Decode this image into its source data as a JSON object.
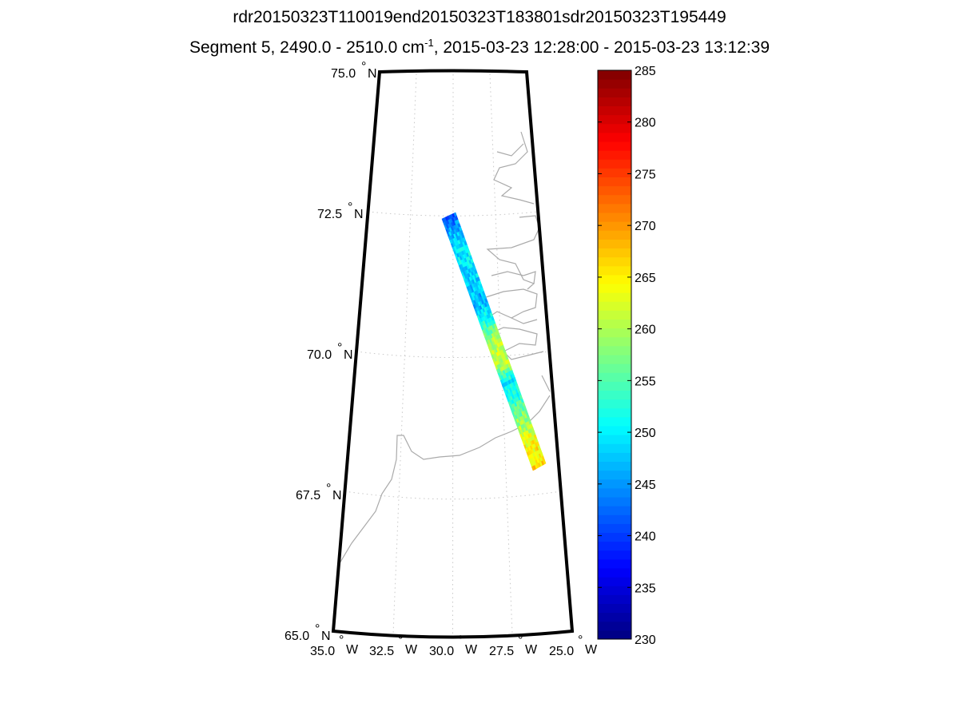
{
  "title": {
    "line1": "rdr20150323T110019end20150323T183801sdr20150323T195449",
    "line2_prefix": "Segment 5, 2490.0 - 2510.0 cm",
    "line2_sup": "-1",
    "line2_suffix": ", 2015-03-23 12:28:00 - 2015-03-23 13:12:39"
  },
  "chart_data": {
    "type": "heatmap",
    "projection": "map",
    "lat_range": [
      65.0,
      75.0
    ],
    "lon_range": [
      -35.0,
      -25.0
    ],
    "lat_ticks": [
      {
        "value": 75.0,
        "label": "75.0",
        "hemi": "N"
      },
      {
        "value": 72.5,
        "label": "72.5",
        "hemi": "N"
      },
      {
        "value": 70.0,
        "label": "70.0",
        "hemi": "N"
      },
      {
        "value": 67.5,
        "label": "67.5",
        "hemi": "N"
      },
      {
        "value": 65.0,
        "label": "65.0",
        "hemi": "N"
      }
    ],
    "lon_ticks": [
      {
        "value": -35.0,
        "label": "35.0",
        "hemi": "W"
      },
      {
        "value": -32.5,
        "label": "32.5",
        "hemi": "W"
      },
      {
        "value": -30.0,
        "label": "30.0",
        "hemi": "W"
      },
      {
        "value": -27.5,
        "label": "27.5",
        "hemi": "W"
      },
      {
        "value": -25.0,
        "label": "25.0",
        "hemi": "W"
      }
    ],
    "grid": true,
    "swath": {
      "start": {
        "lat": 72.4,
        "lon": -30.1
      },
      "end": {
        "lat": 67.9,
        "lon": -26.5
      },
      "value_profile": [
        242,
        248,
        250,
        249,
        246,
        252,
        260,
        262,
        250,
        254,
        260,
        264,
        266
      ]
    },
    "colorbar": {
      "colormap": "jet",
      "range": [
        230,
        285
      ],
      "ticks": [
        "230",
        "235",
        "240",
        "245",
        "250",
        "255",
        "260",
        "265",
        "270",
        "275",
        "280",
        "285"
      ],
      "placement": "right"
    }
  },
  "colors": {
    "frame": "#000000",
    "grid": "#c8c8c8",
    "coast": "#aaaaaa"
  }
}
